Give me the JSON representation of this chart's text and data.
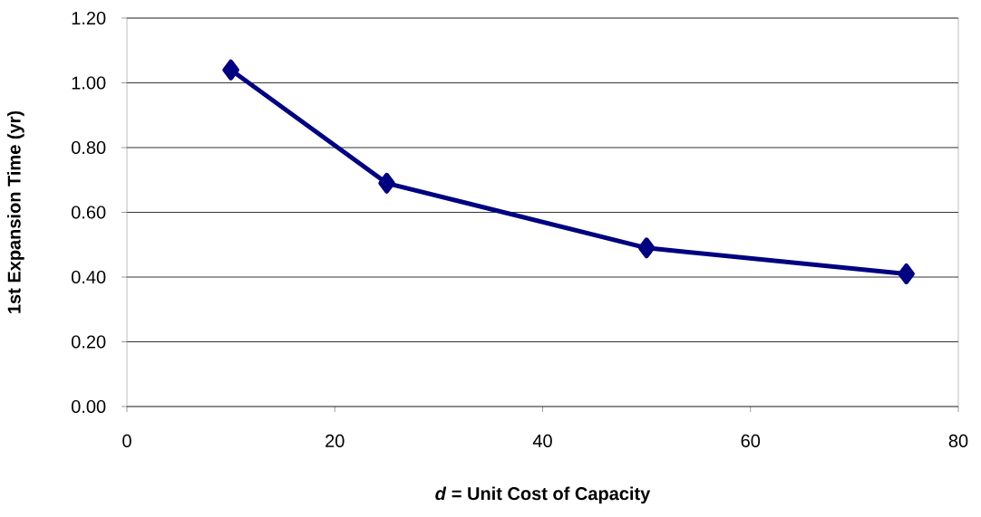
{
  "chart_data": {
    "type": "line",
    "xlabel": "*d* = Unit Cost of Capacity",
    "ylabel": "1st Expansion Time (yr)",
    "x": [
      10,
      25,
      50,
      75
    ],
    "series": [
      {
        "color": "#000080",
        "values": [
          1.04,
          0.69,
          0.49,
          0.41
        ]
      }
    ],
    "xlim": [
      0,
      80
    ],
    "xticks": [
      0,
      20,
      40,
      60,
      80
    ],
    "ylim": [
      0,
      1.2
    ],
    "yticks": [
      {
        "value": 0,
        "label": "0.00"
      },
      {
        "value": 0.2,
        "label": "0.20"
      },
      {
        "value": 0.4,
        "label": "0.40"
      },
      {
        "value": 0.6,
        "label": "0.60"
      },
      {
        "value": 0.8,
        "label": "0.80"
      },
      {
        "value": 1.0,
        "label": "1.00"
      },
      {
        "value": 1.2,
        "label": "1.20"
      }
    ],
    "grid": "y",
    "marker": "diamond",
    "line_style": "solid"
  }
}
